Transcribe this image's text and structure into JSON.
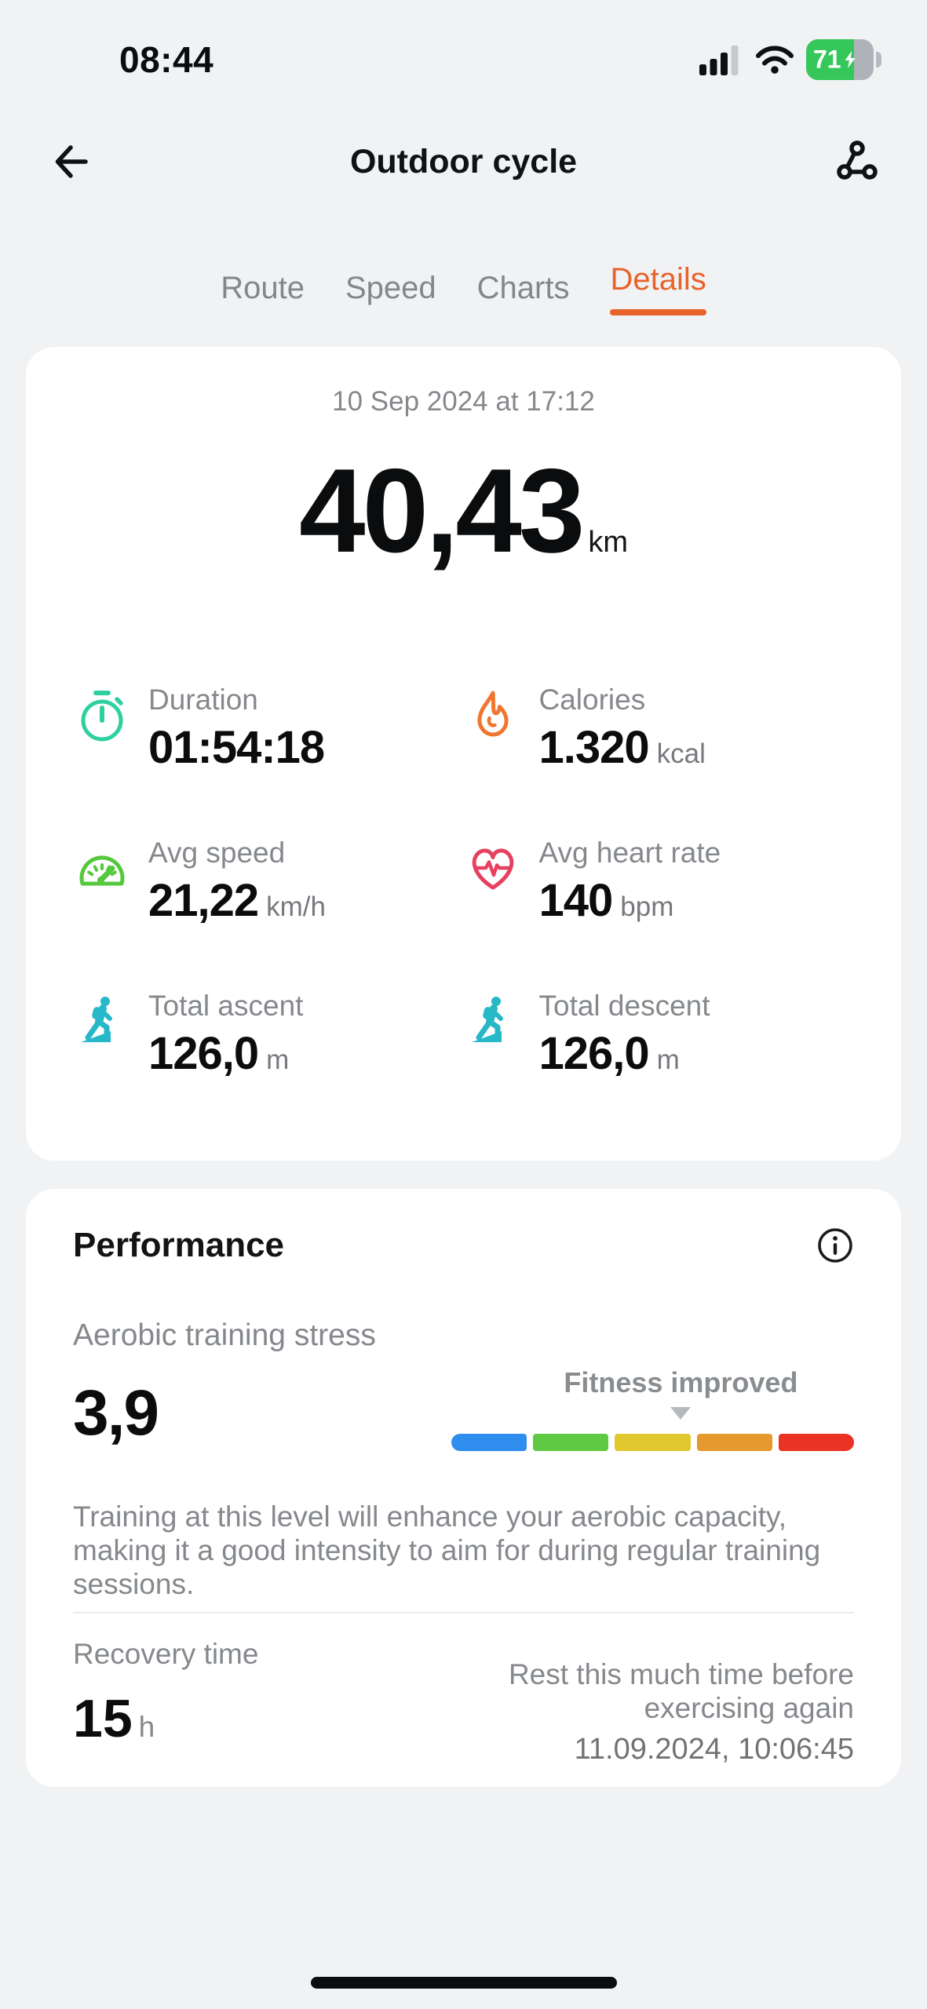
{
  "status_bar": {
    "time": "08:44",
    "battery_percent": "71"
  },
  "header": {
    "title": "Outdoor cycle"
  },
  "tabs": {
    "items": [
      {
        "label": "Route"
      },
      {
        "label": "Speed"
      },
      {
        "label": "Charts"
      },
      {
        "label": "Details"
      }
    ],
    "active": "Details"
  },
  "summary": {
    "datetime": "10 Sep 2024 at 17:12",
    "distance": "40,43",
    "distance_unit": "km"
  },
  "stats": [
    {
      "icon": "stopwatch-icon",
      "label": "Duration",
      "value": "01:54:18",
      "unit": ""
    },
    {
      "icon": "flame-icon",
      "label": "Calories",
      "value": "1.320",
      "unit": "kcal"
    },
    {
      "icon": "speedometer-icon",
      "label": "Avg speed",
      "value": "21,22",
      "unit": "km/h"
    },
    {
      "icon": "heart-rate-icon",
      "label": "Avg heart rate",
      "value": "140",
      "unit": "bpm"
    },
    {
      "icon": "hiker-ascent-icon",
      "label": "Total ascent",
      "value": "126,0",
      "unit": "m"
    },
    {
      "icon": "hiker-descent-icon",
      "label": "Total descent",
      "value": "126,0",
      "unit": "m"
    }
  ],
  "performance": {
    "title": "Performance",
    "metric_label": "Aerobic training stress",
    "metric_value": "3,9",
    "gauge": {
      "label": "Fitness improved",
      "pointer_percent": 57,
      "colors": [
        "#2F8DEE",
        "#5FC944",
        "#E2C82F",
        "#E6992E",
        "#EA3323"
      ]
    },
    "description": "Training at this level will enhance your aerobic capacity, making it a good intensity to aim for during regular training sessions.",
    "recovery": {
      "label": "Recovery time",
      "value": "15",
      "unit": "h",
      "note": "Rest this much time before exercising again",
      "timestamp": "11.09.2024, 10:06:45"
    }
  },
  "colors": {
    "page_bg": "#F1F2F4",
    "card_bg": "#FFFFFF",
    "accent_orange": "#E8632B",
    "battery_green": "#35C759",
    "icon_stopwatch": "#2ED0A0",
    "icon_flame": "#F0752F",
    "icon_speedometer": "#55C83E",
    "icon_heart": "#E6415F",
    "icon_hiker": "#27B8C8"
  }
}
